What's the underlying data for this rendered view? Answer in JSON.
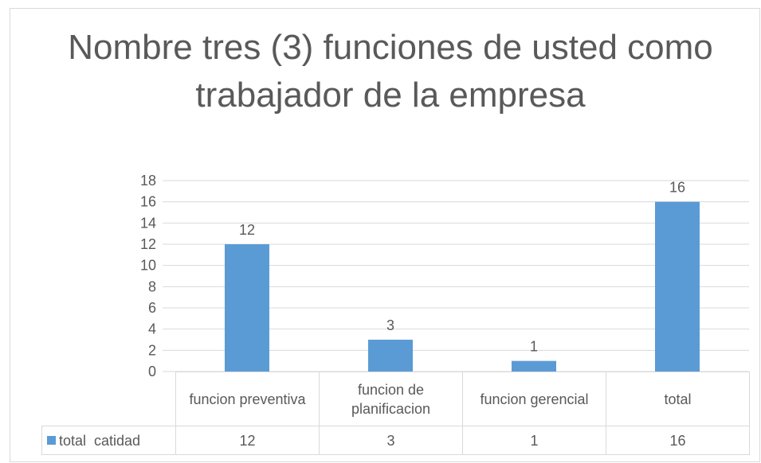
{
  "chart_data": {
    "type": "bar",
    "title": "Nombre tres (3) funciones de usted como trabajador de la empresa",
    "categories": [
      "funcion preventiva",
      "funcion de planificacion",
      "funcion gerencial",
      "total"
    ],
    "series": [
      {
        "name": "total  catidad",
        "color": "#5b9bd5",
        "values": [
          12,
          3,
          1,
          16
        ]
      }
    ],
    "ylim": [
      0,
      18
    ],
    "yticks": [
      0,
      2,
      4,
      6,
      8,
      10,
      12,
      14,
      16,
      18
    ],
    "grid": true,
    "data_table": true
  }
}
